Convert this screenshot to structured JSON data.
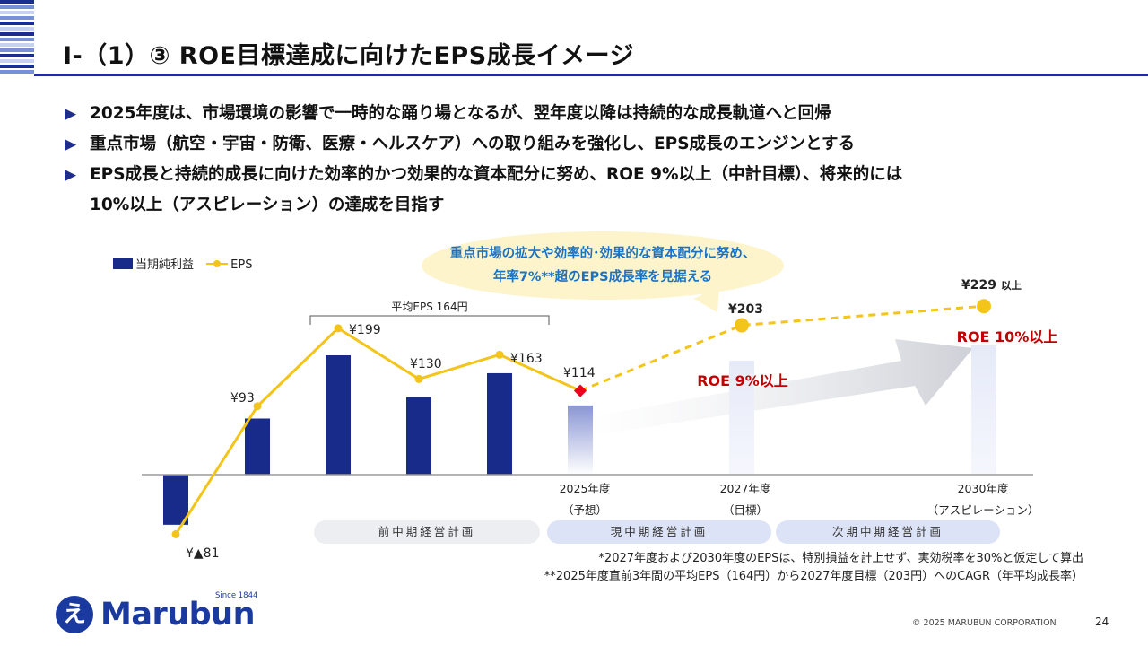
{
  "title": "Ⅰ-（1）③ ROE目標達成に向けたEPS成長イメージ",
  "bullets": [
    "2025年度は、市場環境の影響で一時的な踊り場となるが、翌年度以降は持続的な成長軌道へと回帰",
    "重点市場（航空・宇宙・防衛、医療・ヘルスケア）への取り組みを強化し、EPS成長のエンジンとする",
    "EPS成長と持続的成長に向けた効率的かつ効果的な資本配分に努め、ROE 9%以上（中計目標）、将来的には",
    "10%以上（アスピレーション）の達成を目指す"
  ],
  "legend": {
    "bar": "当期純利益",
    "line": "EPS"
  },
  "callout": {
    "line1": "重点市場の拡大や効率的･効果的な資本配分に努め、",
    "line2": "年率7%**超のEPS成長率を見据える"
  },
  "chart_data": {
    "type": "bar+line",
    "series": [
      {
        "name": "当期純利益",
        "kind": "bar",
        "relative_heights": [
          -0.42,
          0.47,
          1.0,
          0.65,
          0.85,
          0.58,
          null,
          null
        ]
      },
      {
        "name": "EPS",
        "kind": "line",
        "values": [
          -81,
          93,
          199,
          130,
          163,
          114,
          203,
          229
        ]
      }
    ],
    "eps_labels": [
      "¥▲81",
      "¥93",
      "¥199",
      "¥130",
      "¥163",
      "¥114",
      "¥203",
      "¥229"
    ],
    "eps_229_suffix": "以上",
    "avg_bracket_label": "平均EPS 164円",
    "x_labels": [
      {
        "main": "2025年度",
        "sub": "（予想）"
      },
      {
        "main": "2027年度",
        "sub": "（目標）"
      },
      {
        "main": "2030年度",
        "sub": "（アスピレーション）"
      }
    ],
    "roe_labels": [
      "ROE 9%以上",
      "ROE 10%以上"
    ],
    "colors": {
      "bar": "#182a8a",
      "line": "#f3c419",
      "roe": "#c00000",
      "forecast_marker": "#e8001c"
    }
  },
  "plans": [
    "前中期経営計画",
    "現中期経営計画",
    "次期中期経営計画"
  ],
  "footnotes": [
    "*2027年度および2030年度のEPSは、特別損益を計上せず、実効税率を30%と仮定して算出",
    "**2025年度直前3年間の平均EPS（164円）から2027年度目標（203円）へのCAGR（年平均成長率）"
  ],
  "logo": {
    "word": "Marubun",
    "since": "Since 1844",
    "mark": "え"
  },
  "copyright": "© 2025 MARUBUN CORPORATION",
  "page_number": "24"
}
